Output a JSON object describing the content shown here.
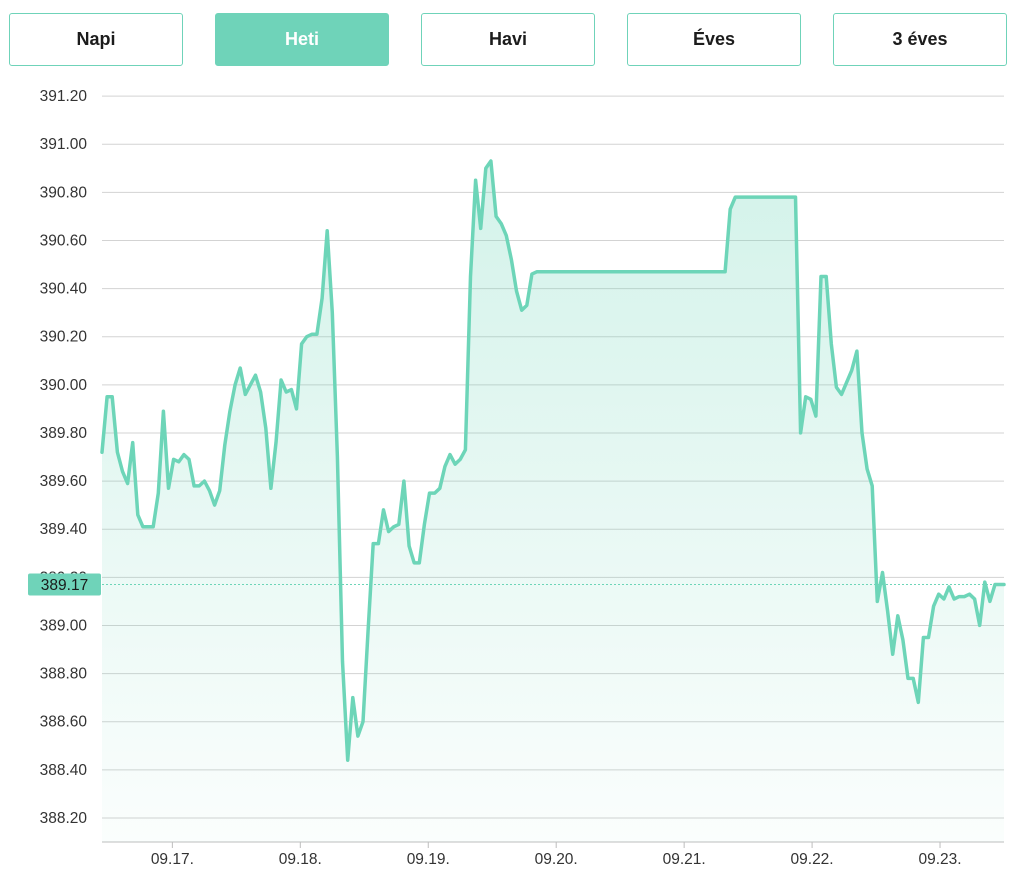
{
  "tabs": [
    {
      "label": "Napi",
      "active": false
    },
    {
      "label": "Heti",
      "active": true
    },
    {
      "label": "Havi",
      "active": false
    },
    {
      "label": "Éves",
      "active": false
    },
    {
      "label": "3 éves",
      "active": false
    }
  ],
  "colors": {
    "accent": "#6fd3b9",
    "line": "#6dd5b8",
    "grid": "#d3d3d3",
    "current_badge": "#6fd3b9"
  },
  "chart_data": {
    "type": "area",
    "title": "",
    "xlabel": "",
    "ylabel": "",
    "ylim": [
      388.1,
      391.3
    ],
    "xlim": [
      -0.55,
      6.5
    ],
    "y_ticks": [
      "388.20",
      "388.40",
      "388.60",
      "388.80",
      "389.00",
      "389.20",
      "389.40",
      "389.60",
      "389.80",
      "390.00",
      "390.20",
      "390.40",
      "390.60",
      "390.80",
      "391.00",
      "391.20"
    ],
    "x_ticks": [
      {
        "x": 0,
        "label": "09.17."
      },
      {
        "x": 1,
        "label": "09.18."
      },
      {
        "x": 2,
        "label": "09.19."
      },
      {
        "x": 3,
        "label": "09.20."
      },
      {
        "x": 4,
        "label": "09.21."
      },
      {
        "x": 5,
        "label": "09.22."
      },
      {
        "x": 6,
        "label": "09.23."
      }
    ],
    "current_value": {
      "value": 389.17,
      "label": "389.17"
    },
    "grid": true,
    "series": [
      {
        "points": [
          [
            -0.55,
            389.72
          ],
          [
            -0.51,
            389.95
          ],
          [
            -0.47,
            389.95
          ],
          [
            -0.43,
            389.72
          ],
          [
            -0.39,
            389.64
          ],
          [
            -0.35,
            389.59
          ],
          [
            -0.31,
            389.76
          ],
          [
            -0.27,
            389.46
          ],
          [
            -0.23,
            389.41
          ],
          [
            -0.19,
            389.41
          ],
          [
            -0.15,
            389.41
          ],
          [
            -0.11,
            389.55
          ],
          [
            -0.07,
            389.89
          ],
          [
            -0.03,
            389.57
          ],
          [
            0.01,
            389.69
          ],
          [
            0.05,
            389.68
          ],
          [
            0.09,
            389.71
          ],
          [
            0.13,
            389.69
          ],
          [
            0.17,
            389.58
          ],
          [
            0.21,
            389.58
          ],
          [
            0.25,
            389.6
          ],
          [
            0.29,
            389.56
          ],
          [
            0.33,
            389.5
          ],
          [
            0.37,
            389.56
          ],
          [
            0.41,
            389.75
          ],
          [
            0.45,
            389.89
          ],
          [
            0.49,
            390.0
          ],
          [
            0.53,
            390.07
          ],
          [
            0.57,
            389.96
          ],
          [
            0.61,
            390.0
          ],
          [
            0.65,
            390.04
          ],
          [
            0.69,
            389.97
          ],
          [
            0.73,
            389.82
          ],
          [
            0.77,
            389.57
          ],
          [
            0.81,
            389.76
          ],
          [
            0.85,
            390.02
          ],
          [
            0.89,
            389.97
          ],
          [
            0.93,
            389.98
          ],
          [
            0.97,
            389.9
          ],
          [
            1.01,
            390.17
          ],
          [
            1.05,
            390.2
          ],
          [
            1.09,
            390.21
          ],
          [
            1.13,
            390.21
          ],
          [
            1.17,
            390.36
          ],
          [
            1.21,
            390.64
          ],
          [
            1.25,
            390.3
          ],
          [
            1.29,
            389.7
          ],
          [
            1.33,
            388.85
          ],
          [
            1.37,
            388.44
          ],
          [
            1.41,
            388.7
          ],
          [
            1.45,
            388.54
          ],
          [
            1.49,
            388.6
          ],
          [
            1.53,
            388.98
          ],
          [
            1.57,
            389.34
          ],
          [
            1.61,
            389.34
          ],
          [
            1.65,
            389.48
          ],
          [
            1.69,
            389.39
          ],
          [
            1.73,
            389.41
          ],
          [
            1.77,
            389.42
          ],
          [
            1.81,
            389.6
          ],
          [
            1.85,
            389.33
          ],
          [
            1.89,
            389.26
          ],
          [
            1.93,
            389.26
          ],
          [
            1.97,
            389.42
          ],
          [
            2.01,
            389.55
          ],
          [
            2.05,
            389.55
          ],
          [
            2.09,
            389.57
          ],
          [
            2.13,
            389.66
          ],
          [
            2.17,
            389.71
          ],
          [
            2.21,
            389.67
          ],
          [
            2.25,
            389.69
          ],
          [
            2.29,
            389.73
          ],
          [
            2.33,
            390.45
          ],
          [
            2.37,
            390.85
          ],
          [
            2.41,
            390.65
          ],
          [
            2.45,
            390.9
          ],
          [
            2.49,
            390.93
          ],
          [
            2.53,
            390.7
          ],
          [
            2.57,
            390.67
          ],
          [
            2.61,
            390.62
          ],
          [
            2.65,
            390.52
          ],
          [
            2.69,
            390.39
          ],
          [
            2.73,
            390.31
          ],
          [
            2.77,
            390.33
          ],
          [
            2.81,
            390.46
          ],
          [
            2.85,
            390.47
          ],
          [
            3.3,
            390.47
          ],
          [
            3.8,
            390.47
          ],
          [
            4.32,
            390.47
          ],
          [
            4.36,
            390.73
          ],
          [
            4.4,
            390.78
          ],
          [
            4.5,
            390.78
          ],
          [
            4.8,
            390.78
          ],
          [
            4.87,
            390.78
          ],
          [
            4.91,
            389.8
          ],
          [
            4.95,
            389.95
          ],
          [
            4.99,
            389.94
          ],
          [
            5.03,
            389.87
          ],
          [
            5.07,
            390.45
          ],
          [
            5.11,
            390.45
          ],
          [
            5.15,
            390.17
          ],
          [
            5.19,
            389.99
          ],
          [
            5.23,
            389.96
          ],
          [
            5.27,
            390.01
          ],
          [
            5.31,
            390.06
          ],
          [
            5.35,
            390.14
          ],
          [
            5.39,
            389.8
          ],
          [
            5.43,
            389.65
          ],
          [
            5.47,
            389.58
          ],
          [
            5.51,
            389.1
          ],
          [
            5.55,
            389.22
          ],
          [
            5.59,
            389.06
          ],
          [
            5.63,
            388.88
          ],
          [
            5.67,
            389.04
          ],
          [
            5.71,
            388.94
          ],
          [
            5.75,
            388.78
          ],
          [
            5.79,
            388.78
          ],
          [
            5.83,
            388.68
          ],
          [
            5.87,
            388.95
          ],
          [
            5.91,
            388.95
          ],
          [
            5.95,
            389.08
          ],
          [
            5.99,
            389.13
          ],
          [
            6.03,
            389.11
          ],
          [
            6.07,
            389.16
          ],
          [
            6.11,
            389.11
          ],
          [
            6.15,
            389.12
          ],
          [
            6.19,
            389.12
          ],
          [
            6.23,
            389.13
          ],
          [
            6.27,
            389.11
          ],
          [
            6.31,
            389.0
          ],
          [
            6.35,
            389.18
          ],
          [
            6.39,
            389.1
          ],
          [
            6.43,
            389.17
          ],
          [
            6.5,
            389.17
          ]
        ]
      }
    ]
  }
}
